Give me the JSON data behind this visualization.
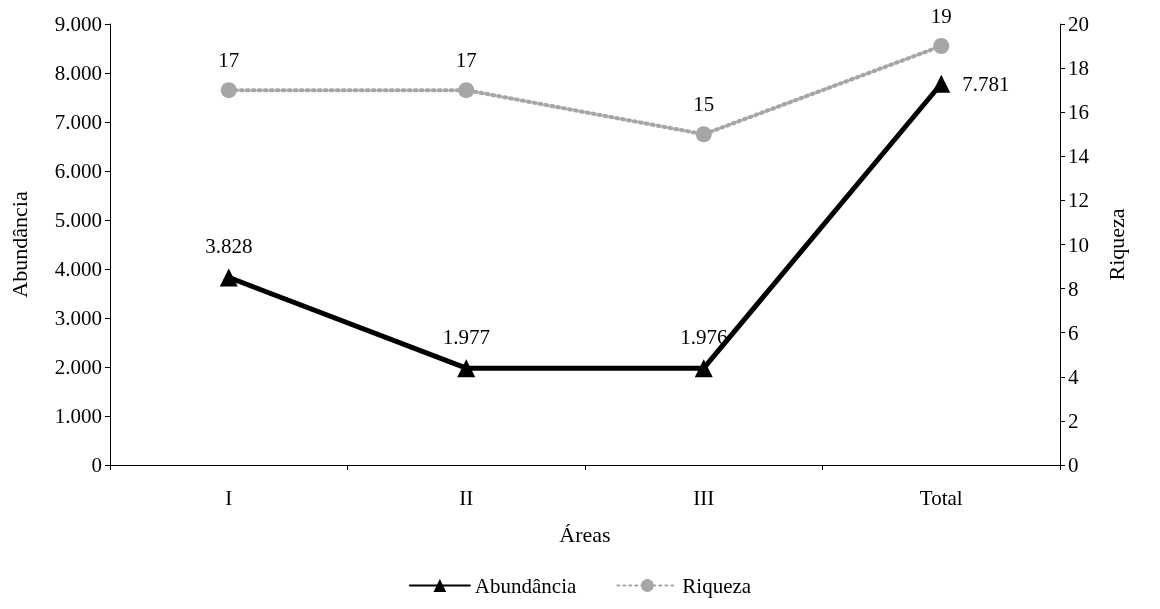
{
  "chart_data": {
    "type": "line",
    "xlabel": "Áreas",
    "ylabel": "Abundância",
    "y2label": "Riqueza",
    "categories": [
      "I",
      "II",
      "III",
      "Total"
    ],
    "series": [
      {
        "name": "Abundância",
        "color": "#000000",
        "values": [
          3828,
          1977,
          1976,
          7781
        ],
        "marker": "triangle",
        "line_style": "solid",
        "value_labels": [
          "3.828",
          "1.977",
          "1.976",
          "7.781"
        ]
      },
      {
        "name": "Riqueza",
        "color": "#a6a6a6",
        "values": [
          17,
          17,
          15,
          19
        ],
        "axis": "y2",
        "marker": "circle",
        "line_style": "dotted",
        "value_labels": [
          "17",
          "17",
          "15",
          "19"
        ]
      }
    ],
    "ylim": [
      0,
      9000
    ],
    "yticks": [
      {
        "value": 0,
        "label": "0"
      },
      {
        "value": 1000,
        "label": "1.000"
      },
      {
        "value": 2000,
        "label": "2.000"
      },
      {
        "value": 3000,
        "label": "3.000"
      },
      {
        "value": 4000,
        "label": "4.000"
      },
      {
        "value": 5000,
        "label": "5.000"
      },
      {
        "value": 6000,
        "label": "6.000"
      },
      {
        "value": 7000,
        "label": "7.000"
      },
      {
        "value": 8000,
        "label": "8.000"
      },
      {
        "value": 9000,
        "label": "9.000"
      }
    ],
    "y2lim": [
      0,
      20
    ],
    "y2ticks": [
      0,
      2,
      4,
      6,
      8,
      10,
      12,
      14,
      16,
      18,
      20
    ],
    "grid": false,
    "legend": "bottom"
  }
}
